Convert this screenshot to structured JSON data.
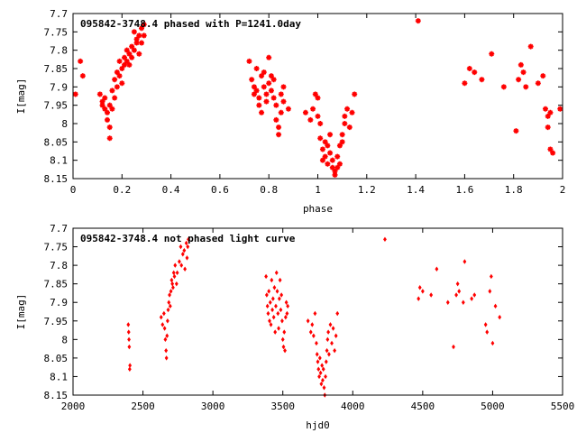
{
  "chart_data": [
    {
      "type": "scatter",
      "title": "095842-3748.4 phased with P=1241.0day",
      "xlabel": "phase",
      "ylabel": "I[mag]",
      "xlim": [
        0,
        2
      ],
      "ylim": [
        7.7,
        8.15
      ],
      "y_inverted": true,
      "grid": false,
      "legend": "none",
      "marker": "asterisk",
      "color": "#ff0000",
      "xticks": [
        "0",
        "0.2",
        "0.4",
        "0.6",
        "0.8",
        "1",
        "1.2",
        "1.4",
        "1.6",
        "1.8",
        "2"
      ],
      "yticks": [
        "7.7",
        "7.75",
        "7.8",
        "7.85",
        "7.9",
        "7.95",
        "8",
        "8.05",
        "8.1",
        "8.15"
      ],
      "points": [
        [
          0.01,
          7.92
        ],
        [
          0.03,
          7.83
        ],
        [
          0.04,
          7.87
        ],
        [
          0.11,
          7.92
        ],
        [
          0.12,
          7.94
        ],
        [
          0.12,
          7.95
        ],
        [
          0.13,
          7.93
        ],
        [
          0.13,
          7.96
        ],
        [
          0.14,
          7.97
        ],
        [
          0.14,
          7.99
        ],
        [
          0.15,
          8.01
        ],
        [
          0.15,
          8.04
        ],
        [
          0.15,
          7.95
        ],
        [
          0.16,
          7.96
        ],
        [
          0.16,
          7.91
        ],
        [
          0.17,
          7.88
        ],
        [
          0.17,
          7.93
        ],
        [
          0.18,
          7.86
        ],
        [
          0.18,
          7.9
        ],
        [
          0.19,
          7.83
        ],
        [
          0.19,
          7.87
        ],
        [
          0.2,
          7.85
        ],
        [
          0.2,
          7.89
        ],
        [
          0.21,
          7.82
        ],
        [
          0.21,
          7.84
        ],
        [
          0.22,
          7.8
        ],
        [
          0.22,
          7.83
        ],
        [
          0.23,
          7.81
        ],
        [
          0.23,
          7.84
        ],
        [
          0.24,
          7.79
        ],
        [
          0.24,
          7.82
        ],
        [
          0.25,
          7.75
        ],
        [
          0.25,
          7.8
        ],
        [
          0.26,
          7.78
        ],
        [
          0.26,
          7.77
        ],
        [
          0.27,
          7.76
        ],
        [
          0.27,
          7.81
        ],
        [
          0.28,
          7.74
        ],
        [
          0.28,
          7.78
        ],
        [
          0.29,
          7.73
        ],
        [
          0.29,
          7.76
        ],
        [
          0.72,
          7.83
        ],
        [
          0.73,
          7.88
        ],
        [
          0.74,
          7.9
        ],
        [
          0.74,
          7.92
        ],
        [
          0.75,
          7.85
        ],
        [
          0.75,
          7.91
        ],
        [
          0.76,
          7.93
        ],
        [
          0.76,
          7.95
        ],
        [
          0.77,
          7.87
        ],
        [
          0.77,
          7.97
        ],
        [
          0.78,
          7.9
        ],
        [
          0.78,
          7.86
        ],
        [
          0.79,
          7.92
        ],
        [
          0.79,
          7.94
        ],
        [
          0.8,
          7.89
        ],
        [
          0.8,
          7.82
        ],
        [
          0.81,
          7.91
        ],
        [
          0.81,
          7.87
        ],
        [
          0.82,
          7.93
        ],
        [
          0.82,
          7.88
        ],
        [
          0.83,
          7.95
        ],
        [
          0.83,
          7.99
        ],
        [
          0.84,
          8.01
        ],
        [
          0.84,
          8.03
        ],
        [
          0.85,
          7.92
        ],
        [
          0.85,
          7.97
        ],
        [
          0.86,
          7.9
        ],
        [
          0.86,
          7.94
        ],
        [
          0.88,
          7.96
        ],
        [
          0.95,
          7.97
        ],
        [
          0.97,
          7.99
        ],
        [
          0.98,
          7.96
        ],
        [
          0.99,
          7.92
        ],
        [
          1.0,
          7.93
        ],
        [
          1.0,
          7.98
        ],
        [
          1.01,
          8.0
        ],
        [
          1.01,
          8.04
        ],
        [
          1.02,
          8.07
        ],
        [
          1.02,
          8.1
        ],
        [
          1.03,
          8.05
        ],
        [
          1.03,
          8.09
        ],
        [
          1.04,
          8.06
        ],
        [
          1.04,
          8.11
        ],
        [
          1.05,
          8.03
        ],
        [
          1.05,
          8.08
        ],
        [
          1.06,
          8.12
        ],
        [
          1.06,
          8.1
        ],
        [
          1.07,
          8.13
        ],
        [
          1.07,
          8.14
        ],
        [
          1.08,
          8.09
        ],
        [
          1.08,
          8.12
        ],
        [
          1.09,
          8.06
        ],
        [
          1.09,
          8.11
        ],
        [
          1.1,
          8.03
        ],
        [
          1.1,
          8.05
        ],
        [
          1.11,
          8.0
        ],
        [
          1.11,
          7.98
        ],
        [
          1.12,
          7.96
        ],
        [
          1.13,
          8.01
        ],
        [
          1.14,
          7.97
        ],
        [
          1.15,
          7.92
        ],
        [
          1.41,
          7.72
        ],
        [
          1.6,
          7.89
        ],
        [
          1.62,
          7.85
        ],
        [
          1.64,
          7.86
        ],
        [
          1.67,
          7.88
        ],
        [
          1.71,
          7.81
        ],
        [
          1.76,
          7.9
        ],
        [
          1.81,
          8.02
        ],
        [
          1.82,
          7.88
        ],
        [
          1.83,
          7.84
        ],
        [
          1.84,
          7.86
        ],
        [
          1.85,
          7.9
        ],
        [
          1.87,
          7.79
        ],
        [
          1.9,
          7.89
        ],
        [
          1.92,
          7.87
        ],
        [
          1.93,
          7.96
        ],
        [
          1.94,
          7.98
        ],
        [
          1.94,
          8.01
        ],
        [
          1.95,
          7.97
        ],
        [
          1.95,
          8.07
        ],
        [
          1.96,
          8.08
        ],
        [
          1.99,
          7.96
        ]
      ]
    },
    {
      "type": "scatter",
      "title": "095842-3748.4 not phased light curve",
      "xlabel": "hjd0",
      "ylabel": "I[mag]",
      "xlim": [
        2000,
        5500
      ],
      "ylim": [
        7.7,
        8.15
      ],
      "y_inverted": true,
      "grid": false,
      "legend": "none",
      "marker": "diamond",
      "color": "#ff0000",
      "xticks": [
        "2000",
        "2500",
        "3000",
        "3500",
        "4000",
        "4500",
        "5000",
        "5500"
      ],
      "yticks": [
        "7.7",
        "7.75",
        "7.8",
        "7.85",
        "7.9",
        "7.95",
        "8",
        "8.05",
        "8.1",
        "8.15"
      ],
      "points": [
        [
          2395,
          7.96
        ],
        [
          2398,
          7.98
        ],
        [
          2400,
          8.0
        ],
        [
          2402,
          8.02
        ],
        [
          2405,
          8.08
        ],
        [
          2407,
          8.07
        ],
        [
          2630,
          7.94
        ],
        [
          2640,
          7.96
        ],
        [
          2650,
          7.93
        ],
        [
          2655,
          7.97
        ],
        [
          2660,
          8.0
        ],
        [
          2665,
          8.03
        ],
        [
          2668,
          8.05
        ],
        [
          2672,
          7.99
        ],
        [
          2676,
          7.95
        ],
        [
          2680,
          7.92
        ],
        [
          2685,
          7.9
        ],
        [
          2690,
          7.88
        ],
        [
          2695,
          7.91
        ],
        [
          2700,
          7.87
        ],
        [
          2705,
          7.84
        ],
        [
          2710,
          7.85
        ],
        [
          2715,
          7.86
        ],
        [
          2720,
          7.82
        ],
        [
          2725,
          7.83
        ],
        [
          2730,
          7.8
        ],
        [
          2740,
          7.85
        ],
        [
          2745,
          7.82
        ],
        [
          2760,
          7.79
        ],
        [
          2770,
          7.75
        ],
        [
          2775,
          7.8
        ],
        [
          2785,
          7.77
        ],
        [
          2795,
          7.76
        ],
        [
          2800,
          7.81
        ],
        [
          2810,
          7.74
        ],
        [
          2815,
          7.78
        ],
        [
          2820,
          7.75
        ],
        [
          2825,
          7.73
        ],
        [
          3380,
          7.83
        ],
        [
          3385,
          7.88
        ],
        [
          3390,
          7.91
        ],
        [
          3395,
          7.93
        ],
        [
          3400,
          7.87
        ],
        [
          3405,
          7.95
        ],
        [
          3410,
          7.9
        ],
        [
          3415,
          7.96
        ],
        [
          3420,
          7.84
        ],
        [
          3425,
          7.92
        ],
        [
          3430,
          7.89
        ],
        [
          3435,
          7.94
        ],
        [
          3440,
          7.86
        ],
        [
          3445,
          7.98
        ],
        [
          3450,
          7.91
        ],
        [
          3455,
          7.82
        ],
        [
          3460,
          7.87
        ],
        [
          3465,
          7.93
        ],
        [
          3470,
          7.97
        ],
        [
          3475,
          7.89
        ],
        [
          3480,
          7.84
        ],
        [
          3485,
          7.92
        ],
        [
          3490,
          7.88
        ],
        [
          3495,
          7.95
        ],
        [
          3500,
          8.0
        ],
        [
          3505,
          8.02
        ],
        [
          3510,
          7.98
        ],
        [
          3515,
          8.03
        ],
        [
          3520,
          7.94
        ],
        [
          3525,
          7.9
        ],
        [
          3530,
          7.93
        ],
        [
          3535,
          7.91
        ],
        [
          3680,
          7.95
        ],
        [
          3700,
          7.98
        ],
        [
          3710,
          7.96
        ],
        [
          3720,
          7.99
        ],
        [
          3730,
          7.93
        ],
        [
          3740,
          8.01
        ],
        [
          3745,
          8.04
        ],
        [
          3750,
          8.06
        ],
        [
          3755,
          8.08
        ],
        [
          3760,
          8.1
        ],
        [
          3765,
          8.05
        ],
        [
          3770,
          8.09
        ],
        [
          3775,
          8.12
        ],
        [
          3780,
          8.07
        ],
        [
          3785,
          8.11
        ],
        [
          3790,
          8.08
        ],
        [
          3795,
          8.13
        ],
        [
          3800,
          8.15
        ],
        [
          3805,
          8.1
        ],
        [
          3810,
          8.06
        ],
        [
          3815,
          8.03
        ],
        [
          3820,
          8.0
        ],
        [
          3825,
          7.98
        ],
        [
          3830,
          8.04
        ],
        [
          3840,
          7.96
        ],
        [
          3850,
          8.01
        ],
        [
          3860,
          7.97
        ],
        [
          3870,
          8.03
        ],
        [
          3880,
          7.99
        ],
        [
          3890,
          7.93
        ],
        [
          4230,
          7.73
        ],
        [
          4470,
          7.89
        ],
        [
          4480,
          7.86
        ],
        [
          4500,
          7.87
        ],
        [
          4560,
          7.88
        ],
        [
          4600,
          7.81
        ],
        [
          4680,
          7.9
        ],
        [
          4720,
          8.02
        ],
        [
          4740,
          7.88
        ],
        [
          4750,
          7.85
        ],
        [
          4760,
          7.87
        ],
        [
          4790,
          7.9
        ],
        [
          4800,
          7.79
        ],
        [
          4850,
          7.89
        ],
        [
          4870,
          7.88
        ],
        [
          4950,
          7.96
        ],
        [
          4960,
          7.98
        ],
        [
          4980,
          7.87
        ],
        [
          4990,
          7.83
        ],
        [
          5000,
          8.01
        ],
        [
          5020,
          7.91
        ],
        [
          5050,
          7.94
        ]
      ]
    }
  ]
}
